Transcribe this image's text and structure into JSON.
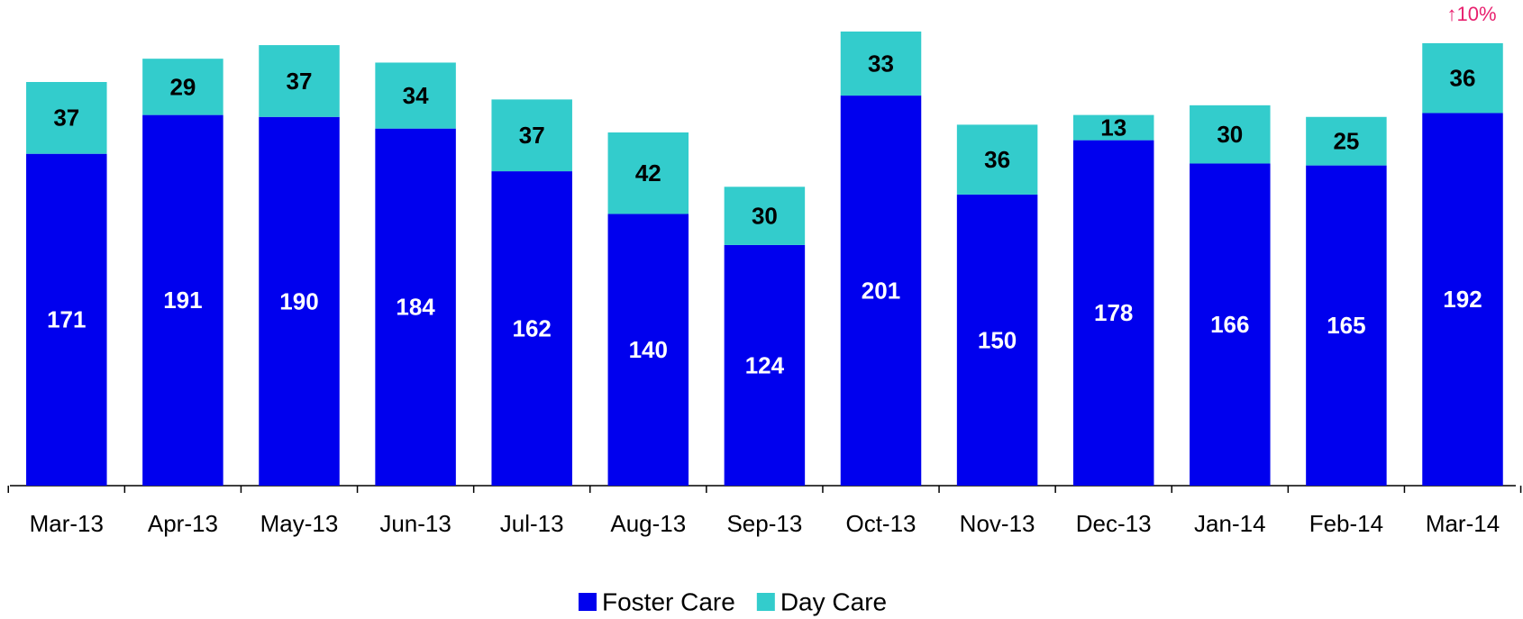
{
  "chart_data": {
    "type": "stacked_bar",
    "categories": [
      "Mar-13",
      "Apr-13",
      "May-13",
      "Jun-13",
      "Jul-13",
      "Aug-13",
      "Sep-13",
      "Oct-13",
      "Nov-13",
      "Dec-13",
      "Jan-14",
      "Feb-14",
      "Mar-14"
    ],
    "series": [
      {
        "name": "Foster Care",
        "color": "#0000ee",
        "values": [
          171,
          191,
          190,
          184,
          162,
          140,
          124,
          201,
          150,
          178,
          166,
          165,
          192
        ]
      },
      {
        "name": "Day Care",
        "color": "#33cccc",
        "values": [
          37,
          29,
          37,
          34,
          37,
          42,
          30,
          33,
          36,
          13,
          30,
          25,
          36
        ]
      }
    ],
    "annotation": "↑10%",
    "legend": "bottom"
  }
}
